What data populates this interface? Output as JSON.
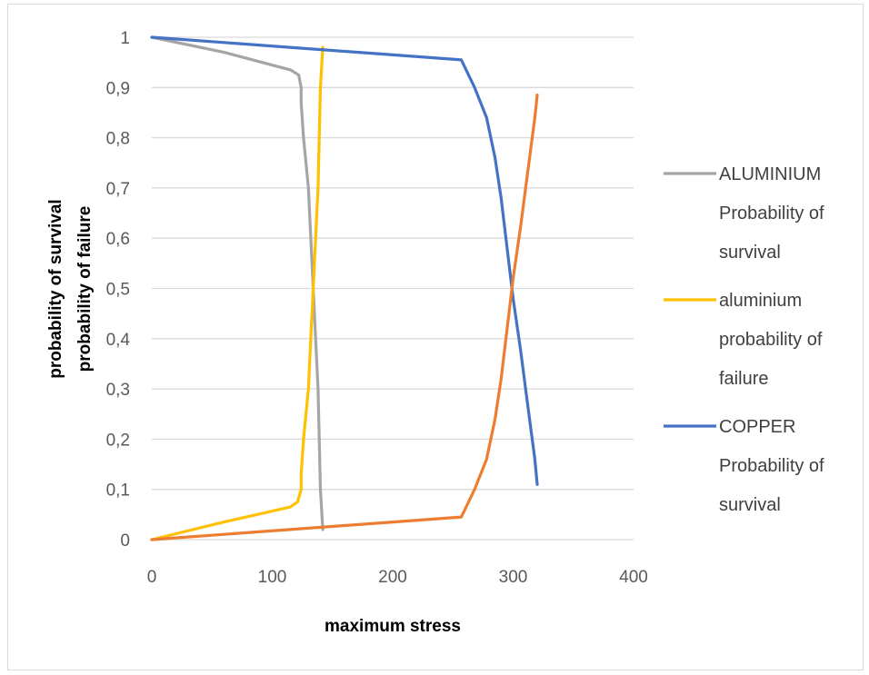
{
  "chart_data": {
    "type": "line",
    "title": "",
    "xlabel": "maximum stress",
    "ylabel_lines": [
      "probability  of survival",
      "probability  of failure"
    ],
    "xlim": [
      0,
      400
    ],
    "ylim": [
      0,
      1
    ],
    "x_ticks": [
      0,
      100,
      200,
      300,
      400
    ],
    "x_tick_labels": [
      "0",
      "100",
      "200",
      "300",
      "400"
    ],
    "y_ticks": [
      0,
      0.1,
      0.2,
      0.3,
      0.4,
      0.5,
      0.6,
      0.7,
      0.8,
      0.9,
      1
    ],
    "y_tick_labels": [
      "0",
      "0,1",
      "0,2",
      "0,3",
      "0,4",
      "0,5",
      "0,6",
      "0,7",
      "0,8",
      "0,9",
      "1"
    ],
    "grid": "horizontal",
    "legend_position": "right",
    "series": [
      {
        "name": "ALUMINIUM Probability of survival",
        "legend_lines": [
          "ALUMINIUM",
          "Probability of",
          "survival"
        ],
        "color": "#a5a5a5",
        "in_legend": true,
        "points": [
          [
            0,
            1
          ],
          [
            60,
            0.97
          ],
          [
            115,
            0.935
          ],
          [
            122,
            0.925
          ],
          [
            124,
            0.9
          ],
          [
            124,
            0.87
          ],
          [
            126,
            0.8
          ],
          [
            130,
            0.7
          ],
          [
            132,
            0.6
          ],
          [
            134,
            0.5
          ],
          [
            136,
            0.4
          ],
          [
            138,
            0.3
          ],
          [
            139,
            0.2
          ],
          [
            140,
            0.1
          ],
          [
            142,
            0.02
          ]
        ]
      },
      {
        "name": "aluminium probability of failure",
        "legend_lines": [
          "aluminium",
          "probability of",
          "failure"
        ],
        "color": "#ffc000",
        "in_legend": true,
        "points": [
          [
            0,
            0
          ],
          [
            60,
            0.035
          ],
          [
            115,
            0.065
          ],
          [
            121,
            0.075
          ],
          [
            124,
            0.1
          ],
          [
            124,
            0.13
          ],
          [
            126,
            0.2
          ],
          [
            130,
            0.3
          ],
          [
            132,
            0.4
          ],
          [
            134,
            0.5
          ],
          [
            136,
            0.6
          ],
          [
            138,
            0.7
          ],
          [
            139,
            0.8
          ],
          [
            140,
            0.9
          ],
          [
            142,
            0.98
          ]
        ]
      },
      {
        "name": "COPPER Probability of survival",
        "legend_lines": [
          "COPPER",
          "Probability of",
          "survival"
        ],
        "color": "#4472c4",
        "in_legend": true,
        "points": [
          [
            0,
            1
          ],
          [
            257,
            0.955
          ],
          [
            268,
            0.9
          ],
          [
            278,
            0.84
          ],
          [
            285,
            0.76
          ],
          [
            290,
            0.68
          ],
          [
            295,
            0.58
          ],
          [
            300,
            0.48
          ],
          [
            306,
            0.38
          ],
          [
            312,
            0.27
          ],
          [
            318,
            0.16
          ],
          [
            320,
            0.11
          ]
        ]
      },
      {
        "name": "COPPER Probability of failure",
        "color": "#ed7d31",
        "in_legend": false,
        "points": [
          [
            0,
            0
          ],
          [
            257,
            0.045
          ],
          [
            268,
            0.1
          ],
          [
            278,
            0.16
          ],
          [
            285,
            0.24
          ],
          [
            290,
            0.32
          ],
          [
            295,
            0.42
          ],
          [
            300,
            0.52
          ],
          [
            306,
            0.62
          ],
          [
            312,
            0.73
          ],
          [
            318,
            0.84
          ],
          [
            320,
            0.885
          ]
        ]
      }
    ]
  }
}
